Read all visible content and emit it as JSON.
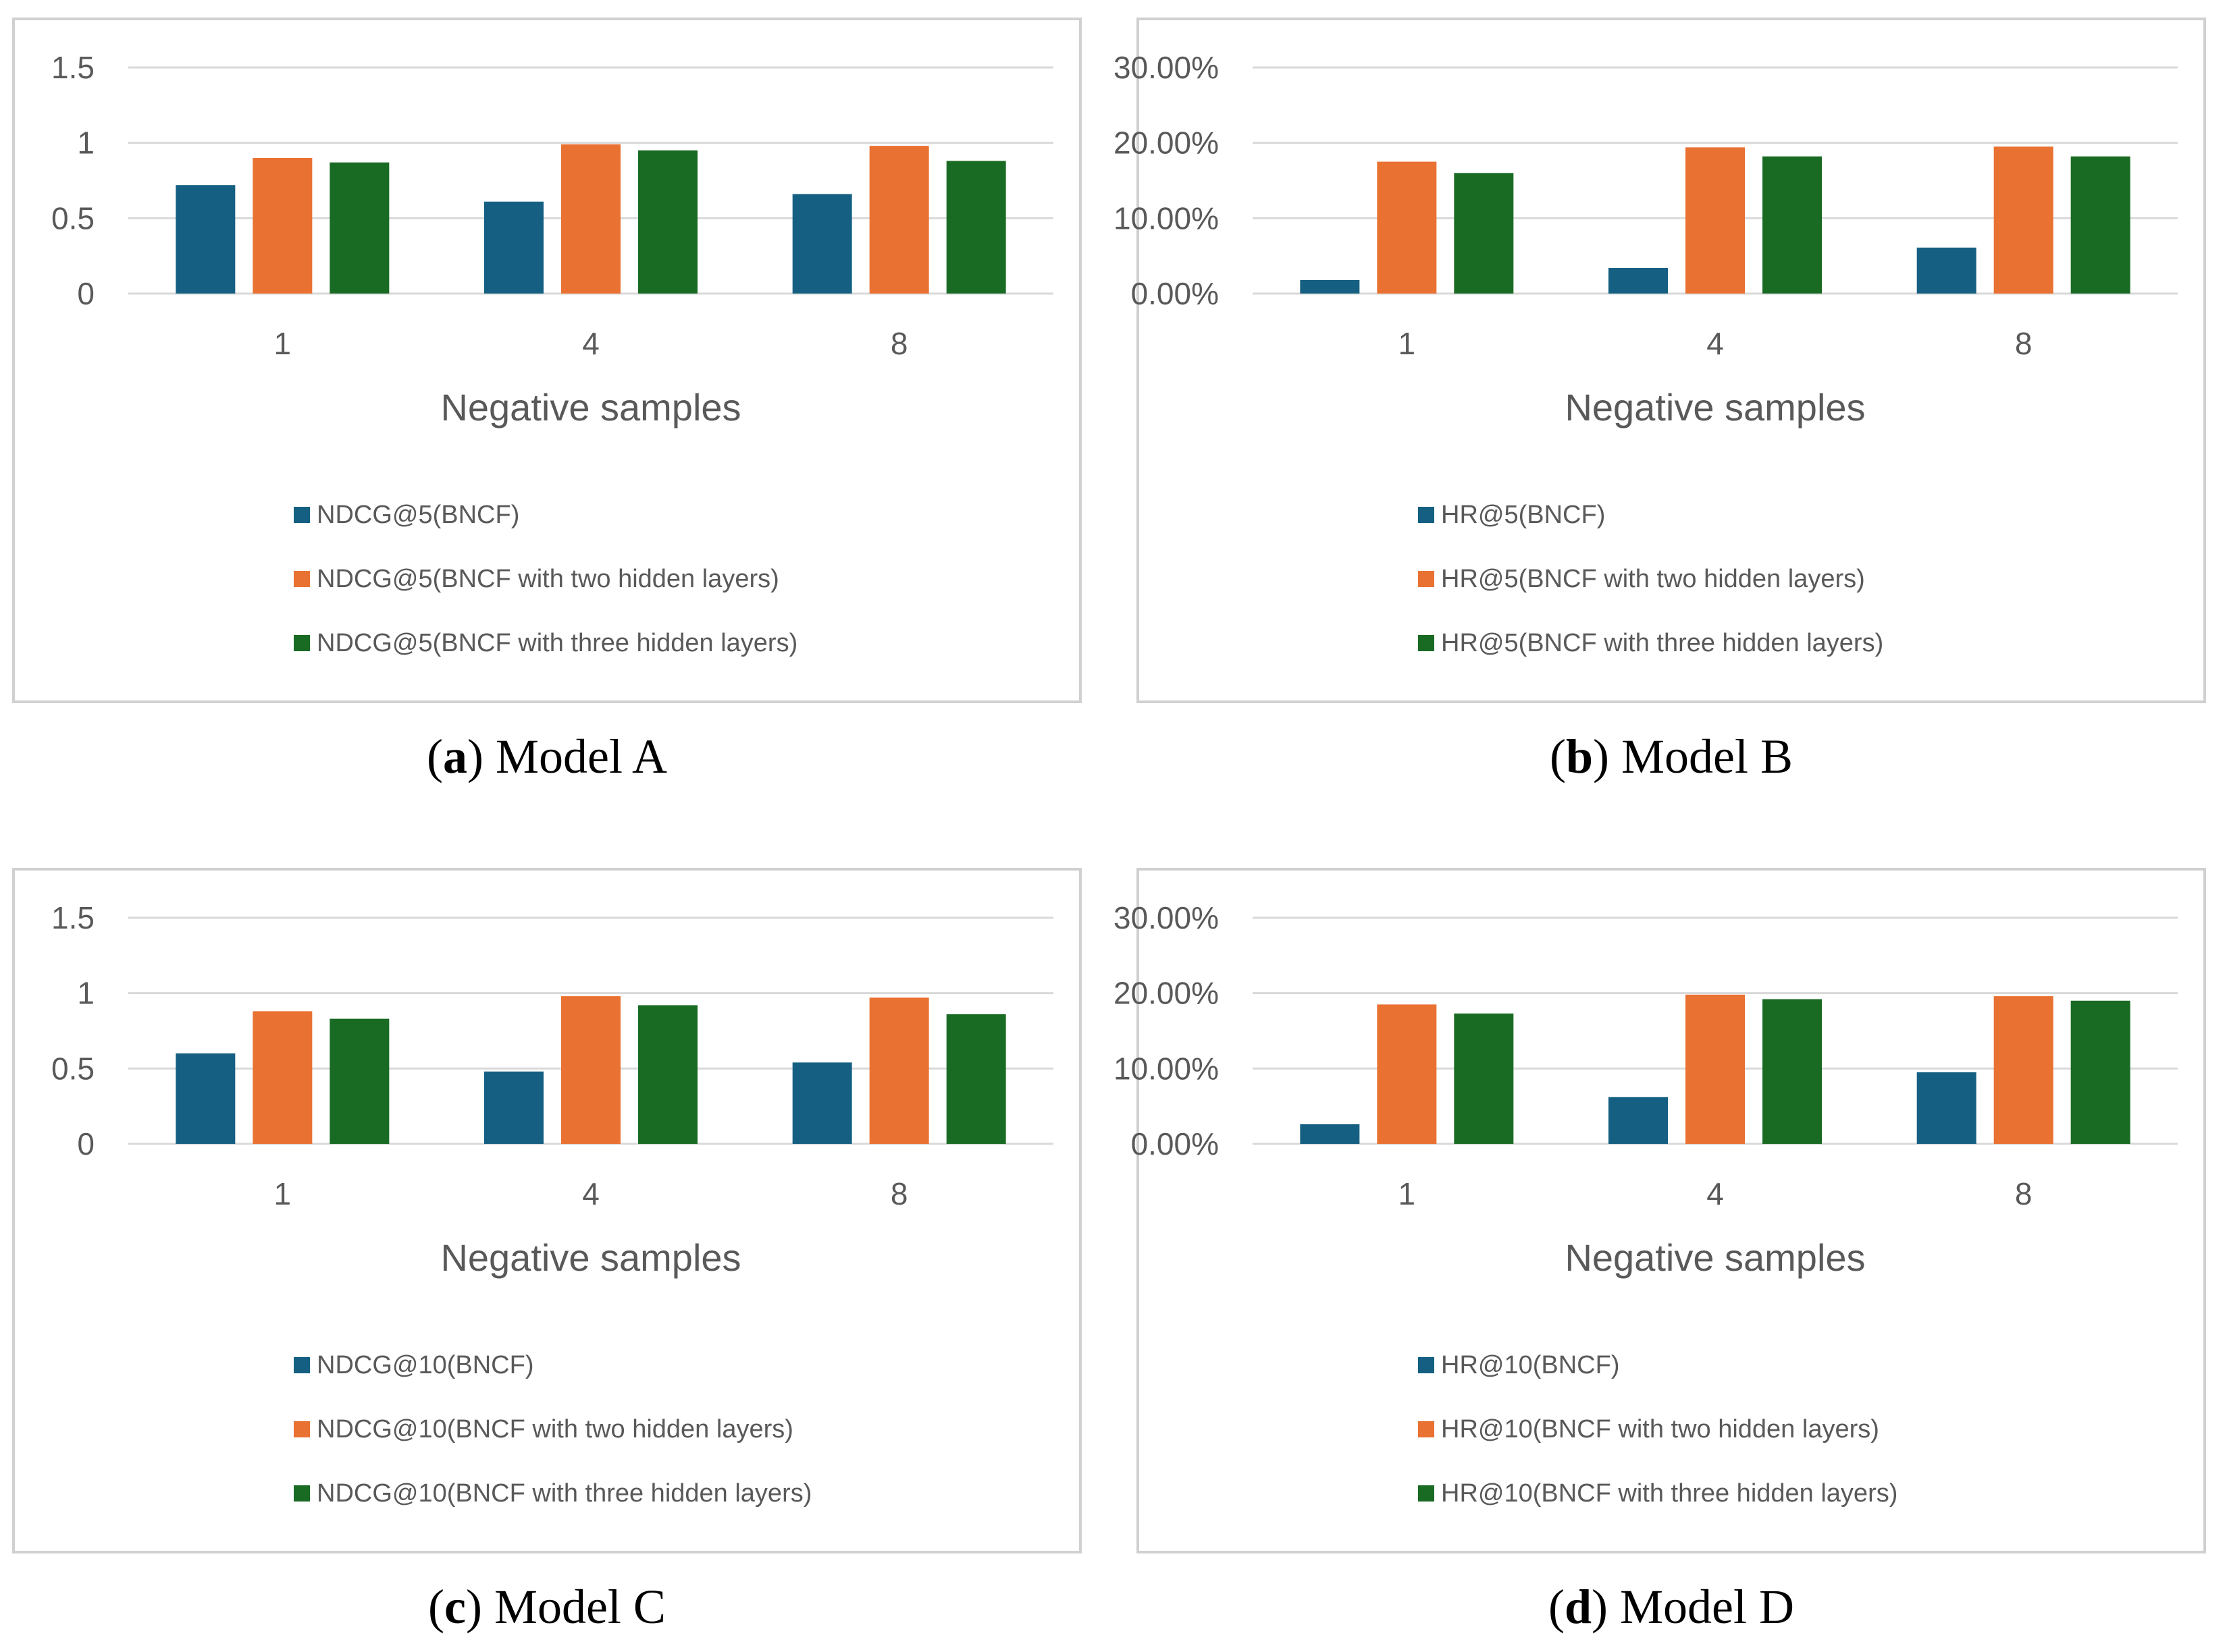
{
  "colors": {
    "series": [
      "#156082",
      "#e97132",
      "#196b24"
    ],
    "grid": "#d9d9d9",
    "frame": "#d0d0d0",
    "text": "#595959"
  },
  "chart_data": [
    {
      "type": "bar",
      "caption_letter": "a",
      "caption_text": "Model A",
      "xlabel": "Negative samples",
      "categories": [
        "1",
        "4",
        "8"
      ],
      "yticks": [
        "0",
        "0.5",
        "1",
        "1.5"
      ],
      "ylim": [
        0,
        1.5
      ],
      "series": [
        {
          "name": "NDCG@5(BNCF)",
          "values": [
            0.72,
            0.61,
            0.66
          ]
        },
        {
          "name": "NDCG@5(BNCF with two hidden layers)",
          "values": [
            0.9,
            0.99,
            0.98
          ]
        },
        {
          "name": "NDCG@5(BNCF with three hidden layers)",
          "values": [
            0.87,
            0.95,
            0.88
          ]
        }
      ]
    },
    {
      "type": "bar",
      "caption_letter": "b",
      "caption_text": "Model B",
      "xlabel": "Negative samples",
      "categories": [
        "1",
        "4",
        "8"
      ],
      "yticks": [
        "0.00%",
        "10.00%",
        "20.00%",
        "30.00%"
      ],
      "ylim": [
        0,
        30
      ],
      "series": [
        {
          "name": "HR@5(BNCF)",
          "values": [
            1.8,
            3.4,
            6.1
          ]
        },
        {
          "name": "HR@5(BNCF with two hidden layers)",
          "values": [
            17.5,
            19.4,
            19.5
          ]
        },
        {
          "name": "HR@5(BNCF with three hidden layers)",
          "values": [
            16.0,
            18.2,
            18.2
          ]
        }
      ]
    },
    {
      "type": "bar",
      "caption_letter": "c",
      "caption_text": "Model C",
      "xlabel": "Negative samples",
      "categories": [
        "1",
        "4",
        "8"
      ],
      "yticks": [
        "0",
        "0.5",
        "1",
        "1.5"
      ],
      "ylim": [
        0,
        1.5
      ],
      "series": [
        {
          "name": "NDCG@10(BNCF)",
          "values": [
            0.6,
            0.48,
            0.54
          ]
        },
        {
          "name": "NDCG@10(BNCF with two hidden layers)",
          "values": [
            0.88,
            0.98,
            0.97
          ]
        },
        {
          "name": "NDCG@10(BNCF with three hidden layers)",
          "values": [
            0.83,
            0.92,
            0.86
          ]
        }
      ]
    },
    {
      "type": "bar",
      "caption_letter": "d",
      "caption_text": "Model D",
      "xlabel": "Negative samples",
      "categories": [
        "1",
        "4",
        "8"
      ],
      "yticks": [
        "0.00%",
        "10.00%",
        "20.00%",
        "30.00%"
      ],
      "ylim": [
        0,
        30
      ],
      "series": [
        {
          "name": "HR@10(BNCF)",
          "values": [
            2.6,
            6.2,
            9.5
          ]
        },
        {
          "name": "HR@10(BNCF with two hidden layers)",
          "values": [
            18.5,
            19.8,
            19.6
          ]
        },
        {
          "name": "HR@10(BNCF with three hidden layers)",
          "values": [
            17.3,
            19.2,
            19.0
          ]
        }
      ]
    }
  ]
}
